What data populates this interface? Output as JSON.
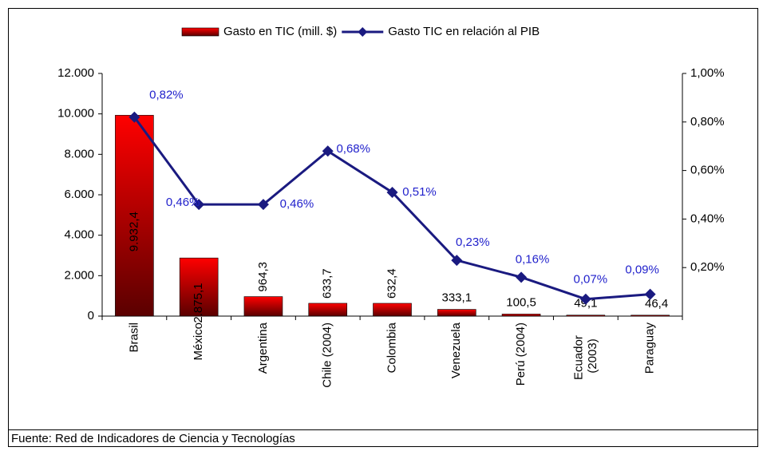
{
  "chart_data": {
    "type": "bar+line",
    "categories": [
      "Brasil",
      "México",
      "Argentina",
      "Chile (2004)",
      "Colombia",
      "Venezuela",
      "Perú (2004)",
      "Ecuador (2003)",
      "Paraguay"
    ],
    "series": [
      {
        "name": "Gasto en TIC (mill. $)",
        "type": "bar",
        "color": "#e00000",
        "values": [
          9932.4,
          2875.1,
          964.3,
          633.7,
          632.4,
          333.1,
          100.5,
          49.1,
          46.4
        ],
        "value_labels": [
          "9.932,4",
          "2.875,1",
          "964,3",
          "633,7",
          "632,4",
          "333,1",
          "100,5",
          "49,1",
          "46,4"
        ]
      },
      {
        "name": "Gasto TIC en relación al PIB",
        "type": "line",
        "axis": "y2",
        "color": "#1a1a80",
        "values": [
          0.82,
          0.46,
          0.46,
          0.68,
          0.51,
          0.23,
          0.16,
          0.07,
          0.09
        ],
        "value_labels": [
          "0,82%",
          "0,46%",
          "0,46%",
          "0,68%",
          "0,51%",
          "0,23%",
          "0,16%",
          "0,07%",
          "0,09%"
        ]
      }
    ],
    "ylim": [
      0,
      12000
    ],
    "yticks": [
      0,
      {
        "value": 2000,
        "label": "2.000"
      },
      {
        "value": 4000,
        "label": "4.000"
      },
      {
        "value": 6000,
        "label": "6.000"
      },
      {
        "value": 8000,
        "label": "8.000"
      },
      {
        "value": 10000,
        "label": "10.000"
      },
      {
        "value": 12000,
        "label": "12.000"
      }
    ],
    "y2lim": [
      0,
      1
    ],
    "y2ticks": [
      {
        "value": 0.2,
        "label": "0,20%"
      },
      {
        "value": 0.4,
        "label": "0,40%"
      },
      {
        "value": 0.6,
        "label": "0,60%"
      },
      {
        "value": 0.8,
        "label": "0,80%"
      },
      {
        "value": 1,
        "label": "1,00%"
      }
    ],
    "legend": "top",
    "source": "Fuente: Red de Indicadores de Ciencia y Tecnologías"
  }
}
